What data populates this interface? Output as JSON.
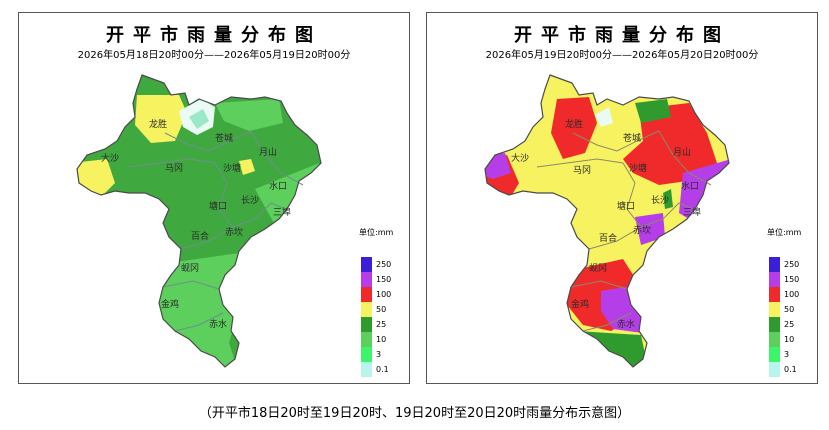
{
  "panels": [
    {
      "title": "开平市雨量分布图",
      "subtitle": "2026年05月18日20时00分——2026年05月19日20时00分",
      "places": [
        "龙胜",
        "苍城",
        "大沙",
        "马冈",
        "沙塘",
        "月山",
        "水口",
        "塘口",
        "长沙",
        "三埠",
        "百合",
        "赤坎",
        "蚬冈",
        "金鸡",
        "赤水"
      ]
    },
    {
      "title": "开平市雨量分布图",
      "subtitle": "2026年05月19日20时00分——2026年05月20日20时00分",
      "places": [
        "龙胜",
        "苍城",
        "大沙",
        "马冈",
        "沙塘",
        "月山",
        "水口",
        "塘口",
        "长沙",
        "三埠",
        "百合",
        "赤坎",
        "蚬冈",
        "金鸡",
        "赤水"
      ]
    }
  ],
  "legend": {
    "unit": "单位:mm",
    "levels": [
      {
        "label": "250",
        "color": "#3a1fd6"
      },
      {
        "label": "150",
        "color": "#b53ee8"
      },
      {
        "label": "100",
        "color": "#f02a2a"
      },
      {
        "label": "50",
        "color": "#f7f260"
      },
      {
        "label": "25",
        "color": "#2f9b2f"
      },
      {
        "label": "10",
        "color": "#5ccf5c"
      },
      {
        "label": "3",
        "color": "#3df56a"
      },
      {
        "label": "0.1",
        "color": "#b8f5ec"
      }
    ]
  },
  "caption": "（开平市18日20时至19日20时、19日20时至20日20时雨量分布示意图）"
}
